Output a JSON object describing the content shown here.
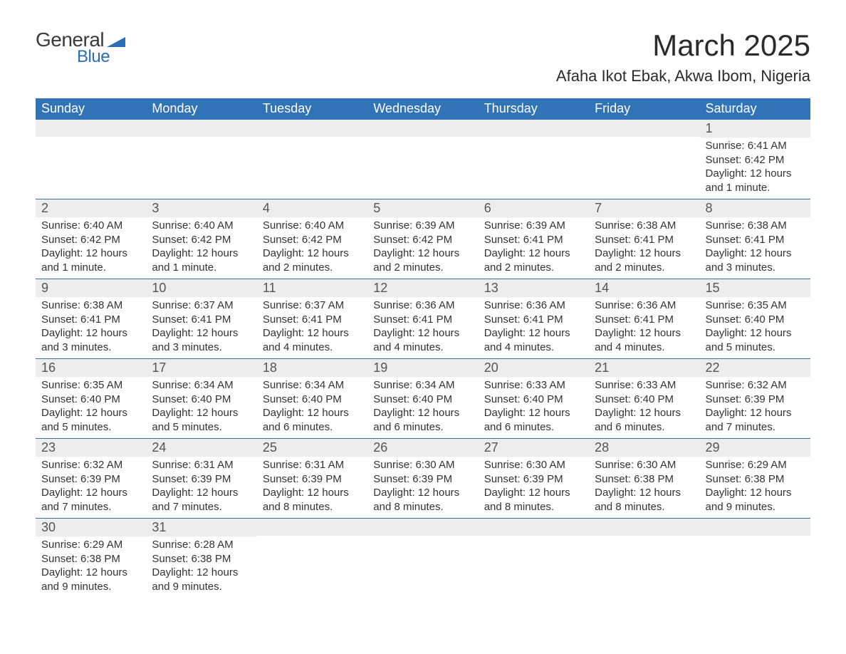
{
  "logo": {
    "text_general": "General",
    "text_blue": "Blue",
    "icon_color": "#2a6db5"
  },
  "header": {
    "month_title": "March 2025",
    "location": "Afaha Ikot Ebak, Akwa Ibom, Nigeria"
  },
  "calendar": {
    "type": "table",
    "header_bg": "#3273b8",
    "header_fg": "#ffffff",
    "daynum_bg": "#ededed",
    "border_color": "#3273b8",
    "day_headers": [
      "Sunday",
      "Monday",
      "Tuesday",
      "Wednesday",
      "Thursday",
      "Friday",
      "Saturday"
    ],
    "weeks": [
      [
        null,
        null,
        null,
        null,
        null,
        null,
        {
          "n": "1",
          "sr": "Sunrise: 6:41 AM",
          "ss": "Sunset: 6:42 PM",
          "dl": "Daylight: 12 hours and 1 minute."
        }
      ],
      [
        {
          "n": "2",
          "sr": "Sunrise: 6:40 AM",
          "ss": "Sunset: 6:42 PM",
          "dl": "Daylight: 12 hours and 1 minute."
        },
        {
          "n": "3",
          "sr": "Sunrise: 6:40 AM",
          "ss": "Sunset: 6:42 PM",
          "dl": "Daylight: 12 hours and 1 minute."
        },
        {
          "n": "4",
          "sr": "Sunrise: 6:40 AM",
          "ss": "Sunset: 6:42 PM",
          "dl": "Daylight: 12 hours and 2 minutes."
        },
        {
          "n": "5",
          "sr": "Sunrise: 6:39 AM",
          "ss": "Sunset: 6:42 PM",
          "dl": "Daylight: 12 hours and 2 minutes."
        },
        {
          "n": "6",
          "sr": "Sunrise: 6:39 AM",
          "ss": "Sunset: 6:41 PM",
          "dl": "Daylight: 12 hours and 2 minutes."
        },
        {
          "n": "7",
          "sr": "Sunrise: 6:38 AM",
          "ss": "Sunset: 6:41 PM",
          "dl": "Daylight: 12 hours and 2 minutes."
        },
        {
          "n": "8",
          "sr": "Sunrise: 6:38 AM",
          "ss": "Sunset: 6:41 PM",
          "dl": "Daylight: 12 hours and 3 minutes."
        }
      ],
      [
        {
          "n": "9",
          "sr": "Sunrise: 6:38 AM",
          "ss": "Sunset: 6:41 PM",
          "dl": "Daylight: 12 hours and 3 minutes."
        },
        {
          "n": "10",
          "sr": "Sunrise: 6:37 AM",
          "ss": "Sunset: 6:41 PM",
          "dl": "Daylight: 12 hours and 3 minutes."
        },
        {
          "n": "11",
          "sr": "Sunrise: 6:37 AM",
          "ss": "Sunset: 6:41 PM",
          "dl": "Daylight: 12 hours and 4 minutes."
        },
        {
          "n": "12",
          "sr": "Sunrise: 6:36 AM",
          "ss": "Sunset: 6:41 PM",
          "dl": "Daylight: 12 hours and 4 minutes."
        },
        {
          "n": "13",
          "sr": "Sunrise: 6:36 AM",
          "ss": "Sunset: 6:41 PM",
          "dl": "Daylight: 12 hours and 4 minutes."
        },
        {
          "n": "14",
          "sr": "Sunrise: 6:36 AM",
          "ss": "Sunset: 6:41 PM",
          "dl": "Daylight: 12 hours and 4 minutes."
        },
        {
          "n": "15",
          "sr": "Sunrise: 6:35 AM",
          "ss": "Sunset: 6:40 PM",
          "dl": "Daylight: 12 hours and 5 minutes."
        }
      ],
      [
        {
          "n": "16",
          "sr": "Sunrise: 6:35 AM",
          "ss": "Sunset: 6:40 PM",
          "dl": "Daylight: 12 hours and 5 minutes."
        },
        {
          "n": "17",
          "sr": "Sunrise: 6:34 AM",
          "ss": "Sunset: 6:40 PM",
          "dl": "Daylight: 12 hours and 5 minutes."
        },
        {
          "n": "18",
          "sr": "Sunrise: 6:34 AM",
          "ss": "Sunset: 6:40 PM",
          "dl": "Daylight: 12 hours and 6 minutes."
        },
        {
          "n": "19",
          "sr": "Sunrise: 6:34 AM",
          "ss": "Sunset: 6:40 PM",
          "dl": "Daylight: 12 hours and 6 minutes."
        },
        {
          "n": "20",
          "sr": "Sunrise: 6:33 AM",
          "ss": "Sunset: 6:40 PM",
          "dl": "Daylight: 12 hours and 6 minutes."
        },
        {
          "n": "21",
          "sr": "Sunrise: 6:33 AM",
          "ss": "Sunset: 6:40 PM",
          "dl": "Daylight: 12 hours and 6 minutes."
        },
        {
          "n": "22",
          "sr": "Sunrise: 6:32 AM",
          "ss": "Sunset: 6:39 PM",
          "dl": "Daylight: 12 hours and 7 minutes."
        }
      ],
      [
        {
          "n": "23",
          "sr": "Sunrise: 6:32 AM",
          "ss": "Sunset: 6:39 PM",
          "dl": "Daylight: 12 hours and 7 minutes."
        },
        {
          "n": "24",
          "sr": "Sunrise: 6:31 AM",
          "ss": "Sunset: 6:39 PM",
          "dl": "Daylight: 12 hours and 7 minutes."
        },
        {
          "n": "25",
          "sr": "Sunrise: 6:31 AM",
          "ss": "Sunset: 6:39 PM",
          "dl": "Daylight: 12 hours and 8 minutes."
        },
        {
          "n": "26",
          "sr": "Sunrise: 6:30 AM",
          "ss": "Sunset: 6:39 PM",
          "dl": "Daylight: 12 hours and 8 minutes."
        },
        {
          "n": "27",
          "sr": "Sunrise: 6:30 AM",
          "ss": "Sunset: 6:39 PM",
          "dl": "Daylight: 12 hours and 8 minutes."
        },
        {
          "n": "28",
          "sr": "Sunrise: 6:30 AM",
          "ss": "Sunset: 6:38 PM",
          "dl": "Daylight: 12 hours and 8 minutes."
        },
        {
          "n": "29",
          "sr": "Sunrise: 6:29 AM",
          "ss": "Sunset: 6:38 PM",
          "dl": "Daylight: 12 hours and 9 minutes."
        }
      ],
      [
        {
          "n": "30",
          "sr": "Sunrise: 6:29 AM",
          "ss": "Sunset: 6:38 PM",
          "dl": "Daylight: 12 hours and 9 minutes."
        },
        {
          "n": "31",
          "sr": "Sunrise: 6:28 AM",
          "ss": "Sunset: 6:38 PM",
          "dl": "Daylight: 12 hours and 9 minutes."
        },
        null,
        null,
        null,
        null,
        null
      ]
    ]
  }
}
